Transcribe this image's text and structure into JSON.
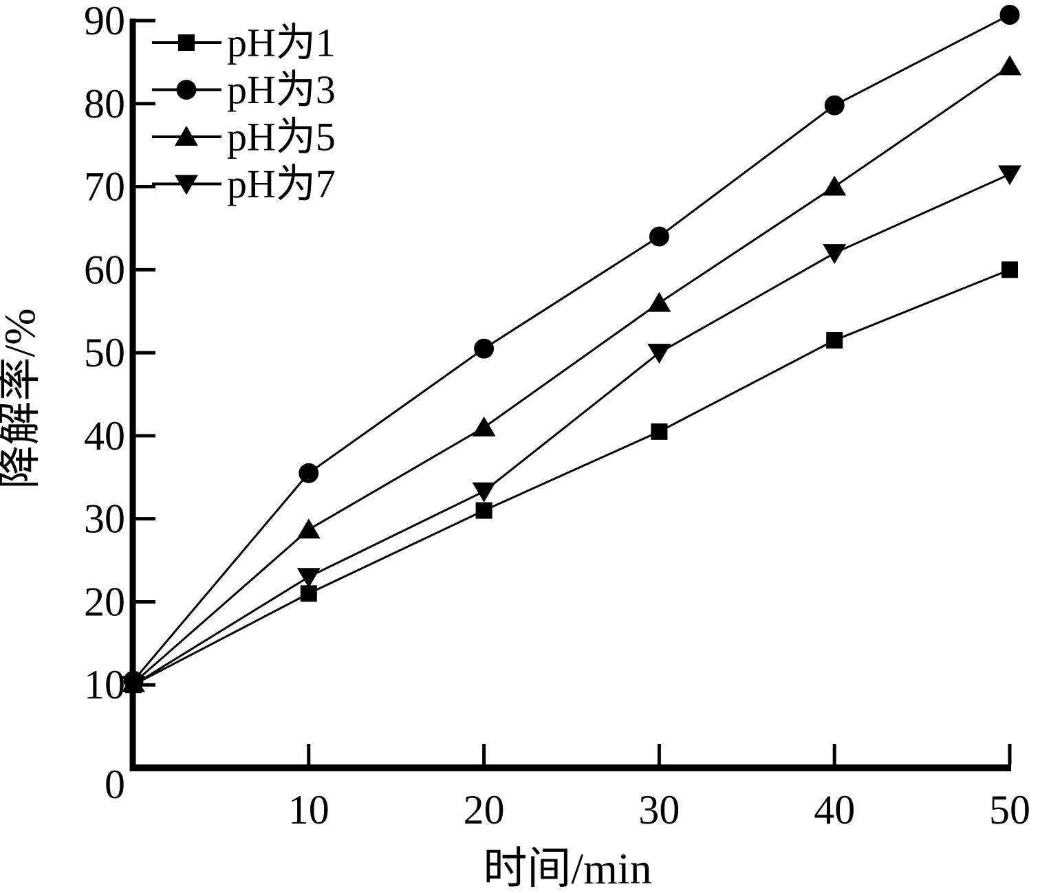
{
  "chart_data": {
    "type": "line",
    "title": "",
    "xlabel": "时间/min",
    "ylabel": "降解率/%",
    "x": [
      0,
      10,
      20,
      30,
      40,
      50
    ],
    "x_ticks": [
      "10",
      "20",
      "30",
      "40",
      "50"
    ],
    "y_ticks": [
      "0",
      "10",
      "20",
      "30",
      "40",
      "50",
      "60",
      "70",
      "80",
      "90"
    ],
    "xlim": [
      0,
      50
    ],
    "ylim": [
      0,
      90
    ],
    "grid": false,
    "legend_position": "top-left",
    "background_color": "#ffffff",
    "line_color": "#000000",
    "series": [
      {
        "name": "pH为1",
        "marker": "square",
        "values": [
          10,
          21,
          31,
          40.5,
          51.5,
          60
        ]
      },
      {
        "name": "pH为3",
        "marker": "circle",
        "values": [
          10.5,
          35.5,
          50.5,
          64,
          79.8,
          90.7
        ]
      },
      {
        "name": "pH为5",
        "marker": "triangle-up",
        "values": [
          10.2,
          28.7,
          41,
          56,
          70,
          84.5
        ]
      },
      {
        "name": "pH为7",
        "marker": "triangle-down",
        "values": [
          10,
          23,
          33.3,
          50,
          62,
          71.5
        ]
      }
    ]
  }
}
